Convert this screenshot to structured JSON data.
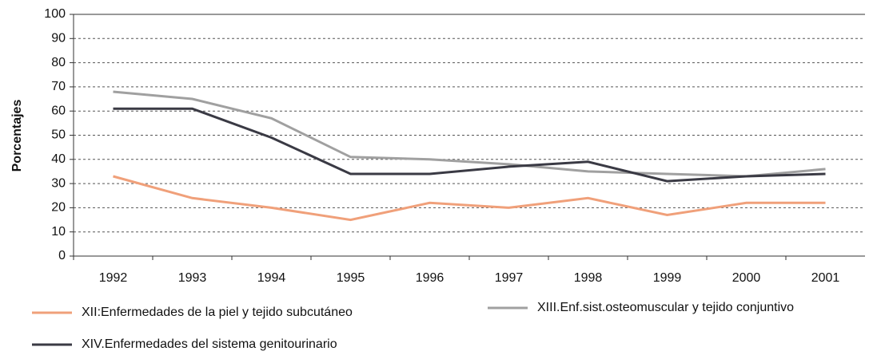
{
  "chart_data": {
    "type": "line",
    "y_label": "Porcentajes",
    "categories": [
      "1992",
      "1993",
      "1994",
      "1995",
      "1996",
      "1997",
      "1998",
      "1999",
      "2000",
      "2001"
    ],
    "series": [
      {
        "name": "XII:Enfermedades de la piel y tejido subcutáneo",
        "color": "#f0a07a",
        "values": [
          33,
          24,
          20,
          15,
          22,
          20,
          24,
          17,
          22,
          22
        ]
      },
      {
        "name": "XIII.Enf.sist.osteomuscular y tejido conjuntivo",
        "color": "#a0a0a0",
        "values": [
          68,
          65,
          57,
          41,
          40,
          38,
          35,
          34,
          33,
          36
        ]
      },
      {
        "name": "XIV.Enfermedades del sistema genitourinario",
        "color": "#3a3a44",
        "values": [
          61,
          61,
          49,
          34,
          34,
          37,
          39,
          31,
          33,
          34
        ]
      }
    ],
    "ylim": [
      0,
      100
    ],
    "yticks": [
      0,
      10,
      20,
      30,
      40,
      50,
      60,
      70,
      80,
      90,
      100
    ],
    "grid": true
  }
}
